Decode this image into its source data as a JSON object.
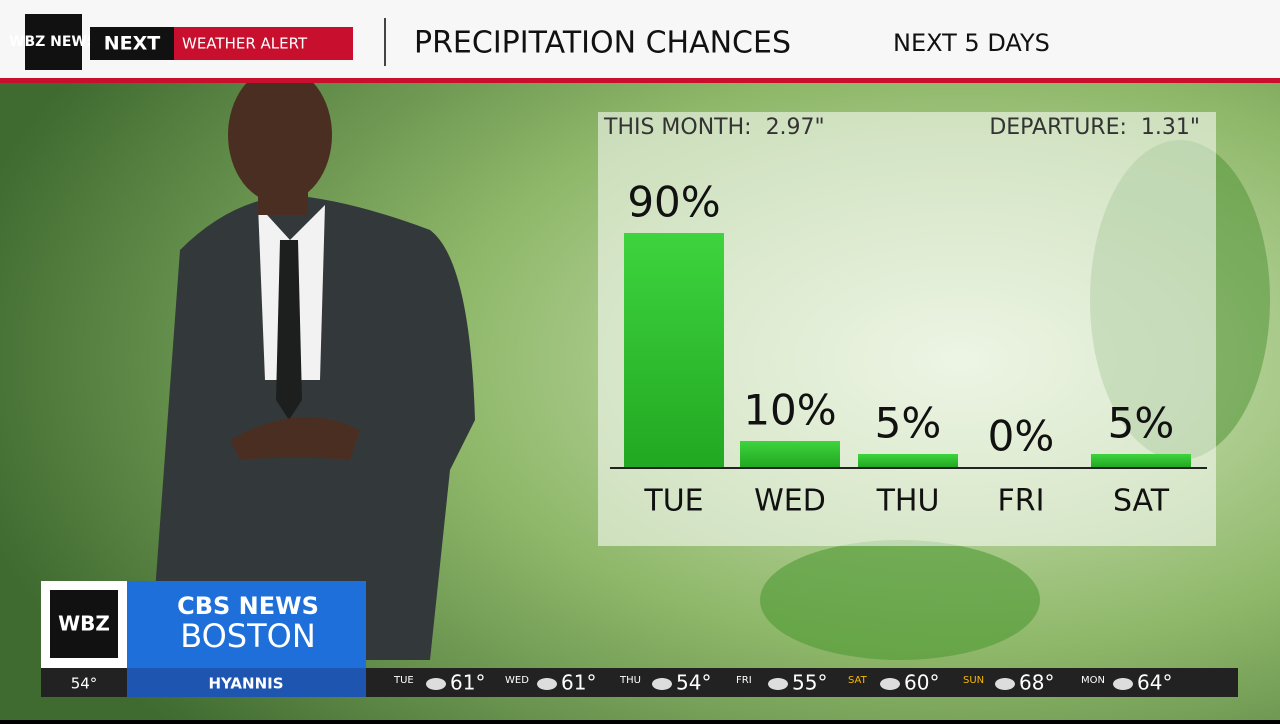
{
  "header": {
    "logo": "WBZ NEWS",
    "brand": "NEXT",
    "alert": "WEATHER ALERT"
  },
  "chart_data": {
    "type": "bar",
    "title": "PRECIPITATION CHANCES",
    "subtitle": "NEXT 5 DAYS",
    "annotations": [
      "THIS MONTH:  2.97\"",
      "DEPARTURE:  1.31\""
    ],
    "categories": [
      "TUE",
      "WED",
      "THU",
      "FRI",
      "SAT"
    ],
    "values": [
      90,
      10,
      5,
      0,
      5
    ],
    "value_labels": [
      "90%",
      "10%",
      "5%",
      "0%",
      "5%"
    ],
    "color": "#3cc43c"
  },
  "station": {
    "call": "WBZ",
    "network": "CBS NEWS",
    "city": "BOSTON",
    "temp": "54°",
    "location": "HYANNIS"
  },
  "ticker": [
    {
      "day": "TUE",
      "temp": "61°"
    },
    {
      "day": "WED",
      "temp": "61°"
    },
    {
      "day": "THU",
      "temp": "54°"
    },
    {
      "day": "FRI",
      "temp": "55°"
    },
    {
      "day": "SAT",
      "temp": "60°"
    },
    {
      "day": "SUN",
      "temp": "68°"
    },
    {
      "day": "MON",
      "temp": "64°"
    }
  ]
}
